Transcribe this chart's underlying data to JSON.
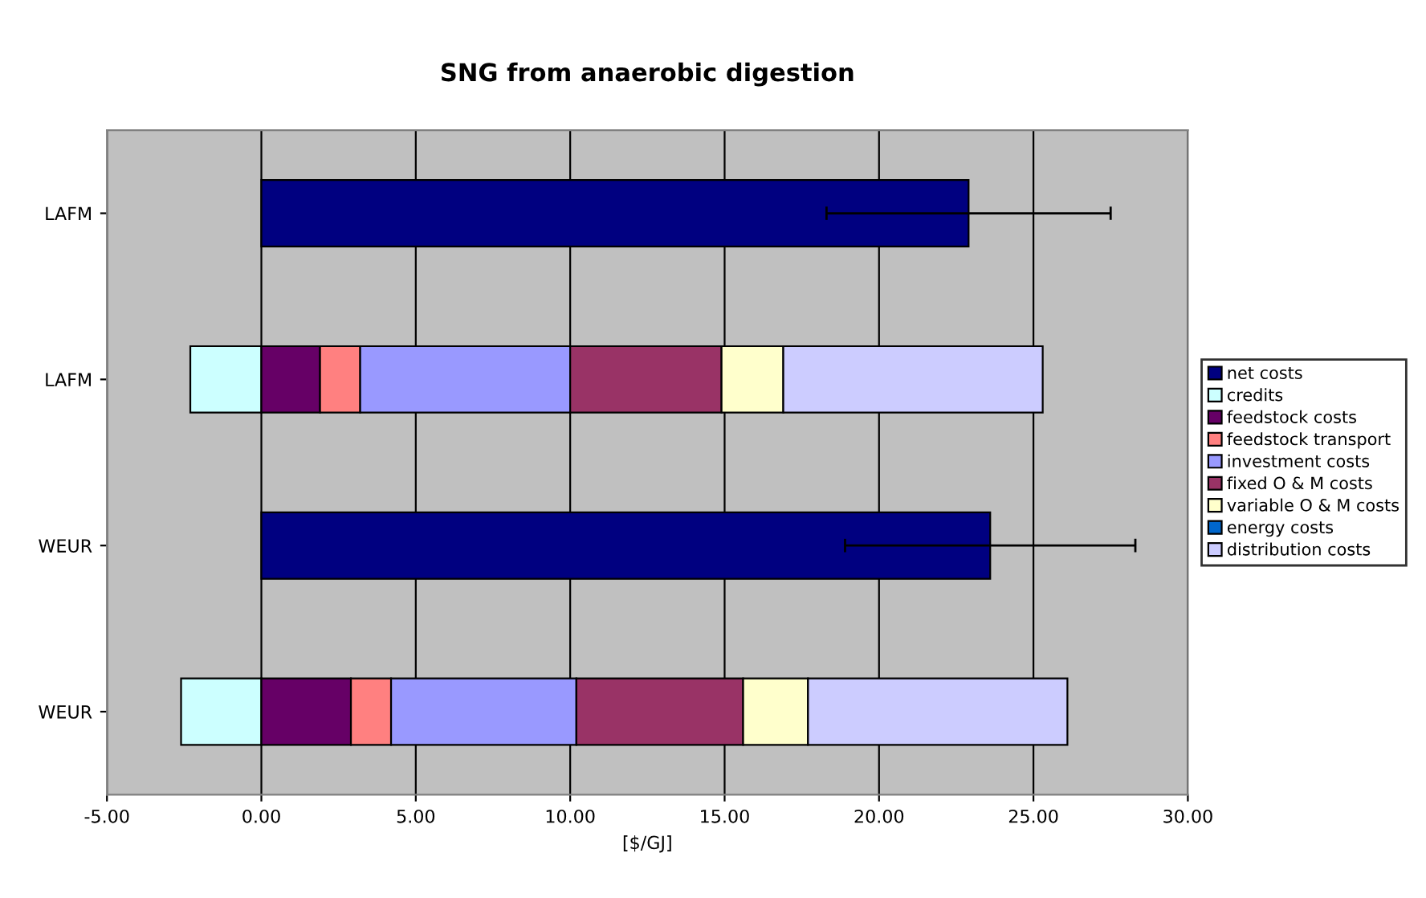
{
  "chart_data": {
    "type": "bar",
    "orientation": "horizontal",
    "stacked": true,
    "title": "SNG from anaerobic digestion",
    "xlabel": "[$/GJ]",
    "categories": [
      "LAFM",
      "LAFM",
      "WEUR",
      "WEUR"
    ],
    "series": [
      {
        "name": "net costs",
        "color": "#000080",
        "values": [
          22.9,
          null,
          23.6,
          null
        ],
        "errors": [
          4.6,
          null,
          4.7,
          null
        ]
      },
      {
        "name": "credits",
        "color": "#ccffff",
        "values": [
          null,
          -2.3,
          null,
          -2.6
        ]
      },
      {
        "name": "feedstock costs",
        "color": "#660066",
        "values": [
          null,
          1.9,
          null,
          2.9
        ]
      },
      {
        "name": "feedstock transport",
        "color": "#ff8080",
        "values": [
          null,
          1.3,
          null,
          1.3
        ]
      },
      {
        "name": "investment costs",
        "color": "#9999ff",
        "values": [
          null,
          6.8,
          null,
          6.0
        ]
      },
      {
        "name": "fixed O & M costs",
        "color": "#993366",
        "values": [
          null,
          4.9,
          null,
          5.4
        ]
      },
      {
        "name": "variable O & M costs",
        "color": "#ffffcc",
        "values": [
          null,
          2.0,
          null,
          2.1
        ]
      },
      {
        "name": "energy costs",
        "color": "#0066cc",
        "values": [
          null,
          null,
          null,
          null
        ]
      },
      {
        "name": "distribution costs",
        "color": "#ccccff",
        "values": [
          null,
          8.4,
          null,
          8.4
        ]
      }
    ],
    "xlim": [
      -5,
      30
    ],
    "xticks": [
      {
        "value": -5,
        "label": "-5.00"
      },
      {
        "value": 0,
        "label": "0.00"
      },
      {
        "value": 5,
        "label": "5.00"
      },
      {
        "value": 10,
        "label": "10.00"
      },
      {
        "value": 15,
        "label": "15.00"
      },
      {
        "value": 20,
        "label": "20.00"
      },
      {
        "value": 25,
        "label": "25.00"
      },
      {
        "value": 30,
        "label": "30.00"
      }
    ],
    "grid": "x",
    "legend": "right"
  }
}
